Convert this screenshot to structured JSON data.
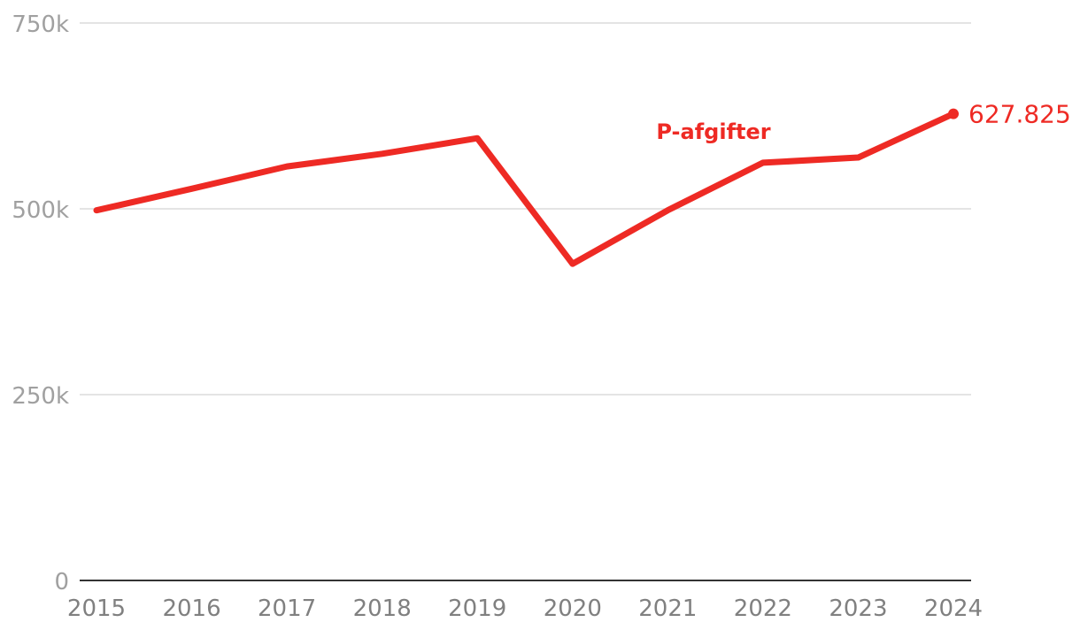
{
  "chart_data": {
    "type": "line",
    "x": [
      "2015",
      "2016",
      "2017",
      "2018",
      "2019",
      "2020",
      "2021",
      "2022",
      "2023",
      "2024"
    ],
    "series": [
      {
        "name": "P-afgifter",
        "values": [
          498000,
          527000,
          557000,
          574000,
          595000,
          426000,
          498000,
          562000,
          569000,
          627825
        ],
        "color": "#ee2a24"
      }
    ],
    "ylim": [
      0,
      750000
    ],
    "yticks": [
      0,
      250000,
      500000,
      750000
    ],
    "ytick_labels": [
      "0",
      "250k",
      "500k",
      "750k"
    ],
    "end_label": "627.825",
    "grid": true,
    "legend": "inline",
    "title": "",
    "xlabel": "",
    "ylabel": ""
  }
}
